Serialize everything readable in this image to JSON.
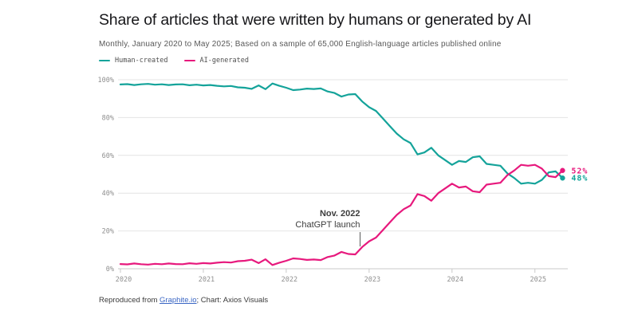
{
  "header": {
    "title": "Share of articles that were written by humans or generated by AI",
    "subtitle": "Monthly, January 2020 to May 2025; Based on a sample of 65,000 English-language articles published online"
  },
  "legend": [
    {
      "label": "Human-created",
      "color": "#14a39a"
    },
    {
      "label": "AI-generated",
      "color": "#e7197d"
    }
  ],
  "chart_data": {
    "type": "line",
    "x_unit": "month",
    "x_start": "2020-01",
    "x_end": "2025-05",
    "x_tick_labels": [
      "2020",
      "2021",
      "2022",
      "2023",
      "2024",
      "2025"
    ],
    "y_tick_labels": [
      "0%",
      "20%",
      "40%",
      "60%",
      "80%",
      "100%"
    ],
    "ylim": [
      0,
      100
    ],
    "grid": true,
    "series": [
      {
        "name": "Human-created",
        "color": "#14a39a",
        "end_label": "48%",
        "values": [
          97.5,
          97.7,
          97.2,
          97.6,
          97.8,
          97.4,
          97.6,
          97.2,
          97.5,
          97.6,
          97.1,
          97.4,
          97.0,
          97.2,
          96.8,
          96.5,
          96.7,
          96.0,
          95.8,
          95.2,
          97.0,
          95.0,
          98.0,
          96.8,
          95.8,
          94.5,
          94.8,
          95.3,
          95.1,
          95.4,
          93.8,
          93.0,
          91.1,
          92.2,
          92.4,
          88.5,
          85.5,
          83.5,
          79.5,
          75.5,
          71.5,
          68.5,
          66.5,
          60.5,
          61.5,
          64.0,
          60.0,
          57.5,
          55.0,
          57.0,
          56.5,
          59.0,
          59.5,
          55.5,
          55.0,
          54.5,
          50.5,
          48.0,
          45.0,
          45.5,
          45.0,
          47.0,
          51.0,
          51.5,
          48.0
        ]
      },
      {
        "name": "AI-generated",
        "color": "#e7197d",
        "end_label": "52%",
        "values": [
          2.5,
          2.3,
          2.8,
          2.4,
          2.2,
          2.6,
          2.4,
          2.8,
          2.5,
          2.4,
          2.9,
          2.6,
          3.0,
          2.8,
          3.2,
          3.5,
          3.3,
          4.0,
          4.2,
          4.8,
          3.0,
          5.0,
          2.0,
          3.2,
          4.2,
          5.5,
          5.2,
          4.7,
          4.9,
          4.6,
          6.2,
          7.0,
          8.9,
          7.8,
          7.6,
          11.5,
          14.5,
          16.5,
          20.5,
          24.5,
          28.5,
          31.5,
          33.5,
          39.5,
          38.5,
          36.0,
          40.0,
          42.5,
          45.0,
          43.0,
          43.5,
          41.0,
          40.5,
          44.5,
          45.0,
          45.5,
          49.5,
          52.0,
          55.0,
          54.5,
          55.0,
          53.0,
          49.0,
          48.5,
          52.0
        ]
      }
    ],
    "annotation": {
      "line1": "Nov. 2022",
      "line2": "ChatGPT launch",
      "month_index": 34
    }
  },
  "footer": {
    "prefix": "Reproduced from ",
    "link_text": "Graphite.io",
    "suffix": "; Chart: Axios Visuals"
  }
}
